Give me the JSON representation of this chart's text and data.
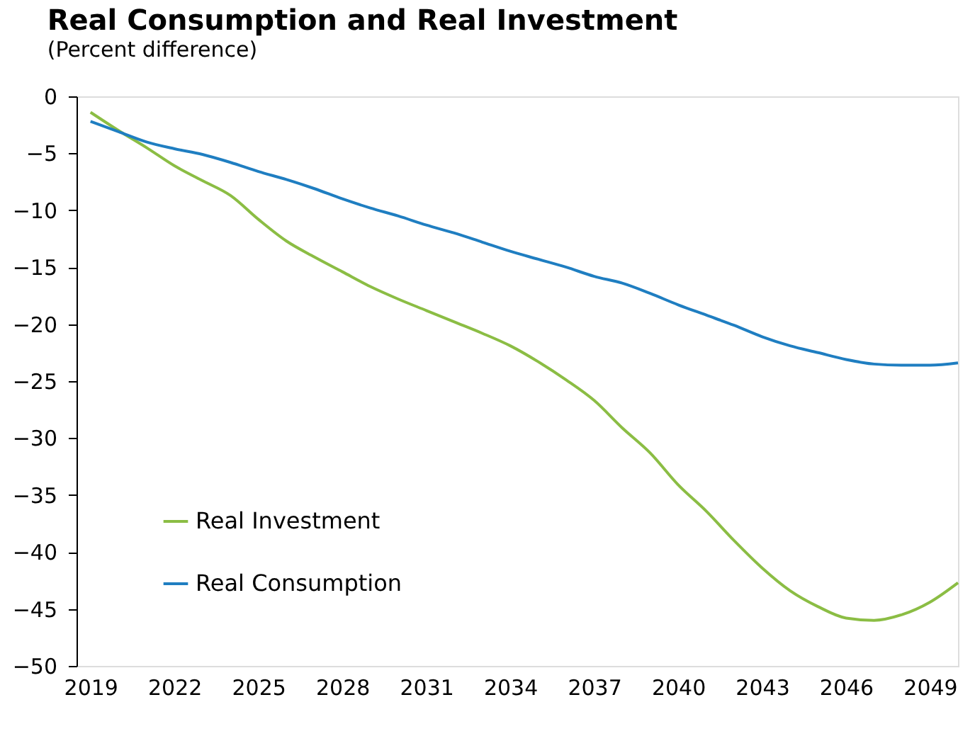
{
  "chart_data": {
    "type": "line",
    "title": "Real Consumption and Real Investment",
    "subtitle": "(Percent difference)",
    "x": [
      2019,
      2020,
      2021,
      2022,
      2023,
      2024,
      2025,
      2026,
      2027,
      2028,
      2029,
      2030,
      2031,
      2032,
      2033,
      2034,
      2035,
      2036,
      2037,
      2038,
      2039,
      2040,
      2041,
      2042,
      2043,
      2044,
      2045,
      2046,
      2047,
      2048,
      2049,
      2050
    ],
    "series": [
      {
        "name": "Real Investment",
        "color": "#8bbd44",
        "values": [
          -1.4,
          -3.0,
          -4.5,
          -6.1,
          -7.4,
          -8.7,
          -10.8,
          -12.7,
          -14.1,
          -15.4,
          -16.7,
          -17.8,
          -18.8,
          -19.8,
          -20.8,
          -21.9,
          -23.3,
          -24.9,
          -26.7,
          -29.1,
          -31.3,
          -34.1,
          -36.4,
          -39.0,
          -41.4,
          -43.4,
          -44.8,
          -45.8,
          -46.0,
          -45.5,
          -44.4,
          -42.7
        ]
      },
      {
        "name": "Real Consumption",
        "color": "#1f7ec1",
        "values": [
          -2.2,
          -3.1,
          -4.0,
          -4.6,
          -5.1,
          -5.8,
          -6.6,
          -7.3,
          -8.1,
          -9.0,
          -9.8,
          -10.5,
          -11.3,
          -12.0,
          -12.8,
          -13.6,
          -14.3,
          -15.0,
          -15.8,
          -16.4,
          -17.3,
          -18.3,
          -19.2,
          -20.1,
          -21.1,
          -21.9,
          -22.5,
          -23.1,
          -23.5,
          -23.6,
          -23.6,
          -23.4
        ]
      }
    ],
    "xlim": [
      2018.5,
      2050
    ],
    "xticks": [
      2019,
      2022,
      2025,
      2028,
      2031,
      2034,
      2037,
      2040,
      2043,
      2046,
      2049
    ],
    "ylim": [
      -50,
      0
    ],
    "yticks": [
      0,
      -5,
      -10,
      -15,
      -20,
      -25,
      -30,
      -35,
      -40,
      -45,
      -50
    ],
    "grid": false,
    "legend": "bottom left",
    "marker": "none",
    "line_style": "solid"
  }
}
